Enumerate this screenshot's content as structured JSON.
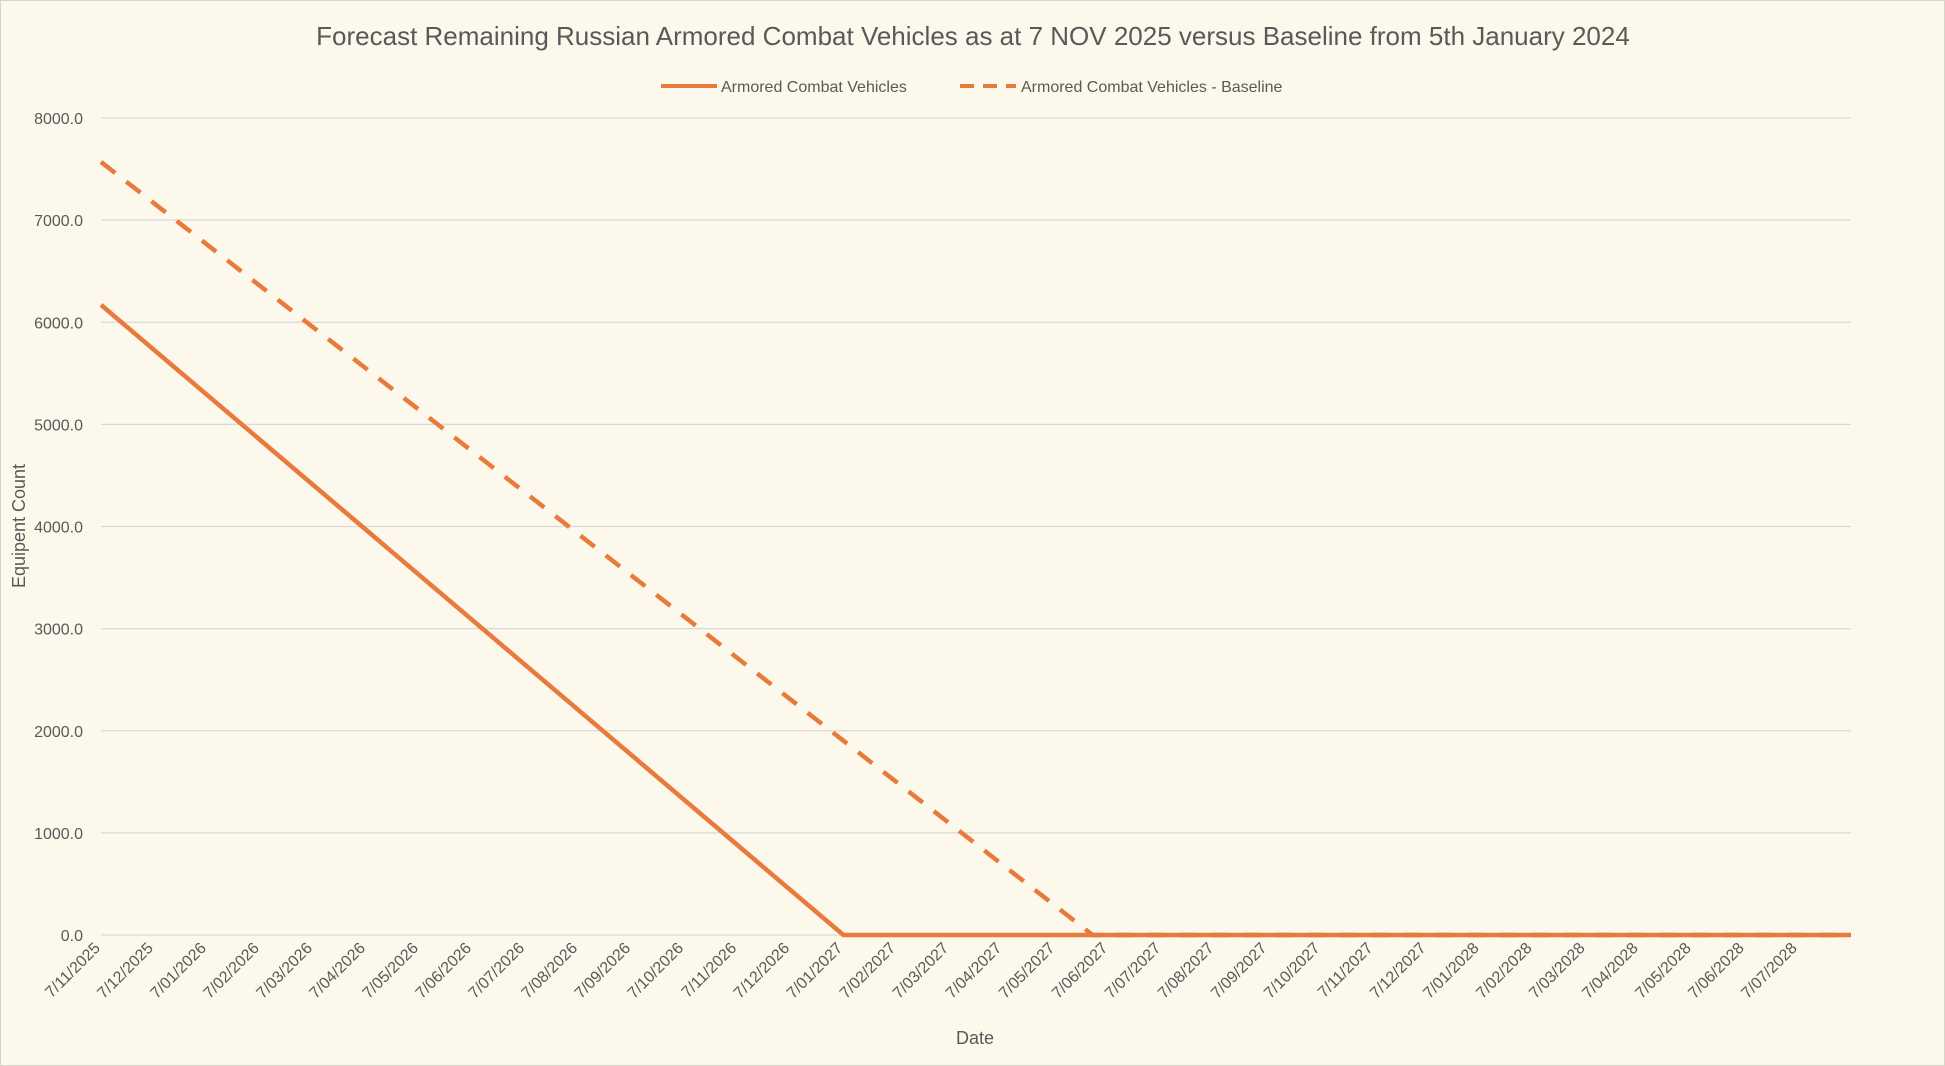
{
  "chart_data": {
    "type": "line",
    "title": "Forecast Remaining Russian Armored Combat Vehicles as at 7 NOV 2025 versus Baseline from 5th January 2024",
    "xlabel": "Date",
    "ylabel": "Equipent Count",
    "ylim": [
      0,
      8000
    ],
    "y_ticks": [
      "0.0",
      "1000.0",
      "2000.0",
      "3000.0",
      "4000.0",
      "5000.0",
      "6000.0",
      "7000.0",
      "8000.0"
    ],
    "y_tick_values": [
      0,
      1000,
      2000,
      3000,
      4000,
      5000,
      6000,
      7000,
      8000
    ],
    "grid": true,
    "legend_position": "top",
    "categories": [
      "7/11/2025",
      "7/12/2025",
      "7/01/2026",
      "7/02/2026",
      "7/03/2026",
      "7/04/2026",
      "7/05/2026",
      "7/06/2026",
      "7/07/2026",
      "7/08/2026",
      "7/09/2026",
      "7/10/2026",
      "7/11/2026",
      "7/12/2026",
      "7/01/2027",
      "7/02/2027",
      "7/03/2027",
      "7/04/2027",
      "7/05/2027",
      "7/06/2027",
      "7/07/2027",
      "7/08/2027",
      "7/09/2027",
      "7/10/2027",
      "7/11/2027",
      "7/12/2027",
      "7/01/2028",
      "7/02/2028",
      "7/03/2028",
      "7/04/2028",
      "7/05/2028",
      "7/06/2028",
      "7/07/2028"
    ],
    "x_index_range": [
      0,
      33
    ],
    "series": [
      {
        "name": "Armored Combat Vehicles",
        "style": "solid",
        "color": "#e87a3c",
        "points": [
          [
            0,
            6170
          ],
          [
            14,
            0
          ],
          [
            33,
            0
          ]
        ]
      },
      {
        "name": "Armored Combat Vehicles - Baseline",
        "style": "dashed",
        "color": "#e87a3c",
        "points": [
          [
            0,
            7570
          ],
          [
            18.7,
            0
          ],
          [
            33,
            0
          ]
        ]
      }
    ]
  }
}
